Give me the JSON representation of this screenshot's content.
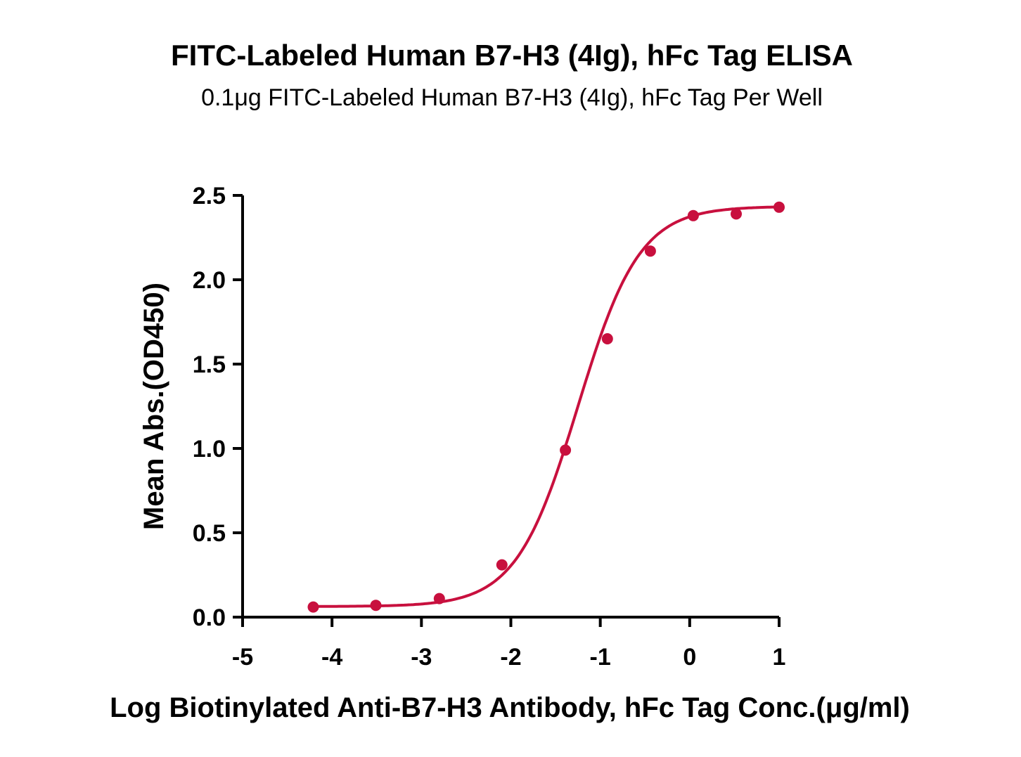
{
  "chart_data": {
    "type": "scatter",
    "title": "FITC-Labeled Human B7-H3 (4Ig), hFc Tag ELISA",
    "subtitle": "0.1μg FITC-Labeled Human B7-H3 (4Ig), hFc Tag Per Well",
    "xlabel": "Log Biotinylated Anti-B7-H3 Antibody, hFc Tag Conc.(μg/ml)",
    "ylabel": "Mean Abs.(OD450)",
    "xlim": [
      -5,
      1
    ],
    "ylim": [
      0,
      2.5
    ],
    "x_ticks": [
      -5,
      -4,
      -3,
      -2,
      -1,
      0,
      1
    ],
    "x_tick_labels": [
      "-5",
      "-4",
      "-3",
      "-2",
      "-1",
      "0",
      "1"
    ],
    "y_ticks": [
      0,
      0.5,
      1.0,
      1.5,
      2.0,
      2.5
    ],
    "y_tick_labels": [
      "0.0",
      "0.5",
      "1.0",
      "1.5",
      "2.0",
      "2.5"
    ],
    "grid": false,
    "legend": "none",
    "series_color": "#c8103e",
    "series": [
      {
        "x": [
          -4.21,
          -3.51,
          -2.8,
          -2.1,
          -1.39,
          -0.92,
          -0.44,
          0.04,
          0.52,
          1.0
        ],
        "y": [
          0.06,
          0.07,
          0.11,
          0.31,
          0.99,
          1.65,
          2.17,
          2.38,
          2.39,
          2.43
        ]
      }
    ],
    "fit_curve": {
      "model": "4PL",
      "bottom": 0.063,
      "top": 2.435,
      "log_ec50": -1.25,
      "hill_slope": 1.26
    }
  }
}
